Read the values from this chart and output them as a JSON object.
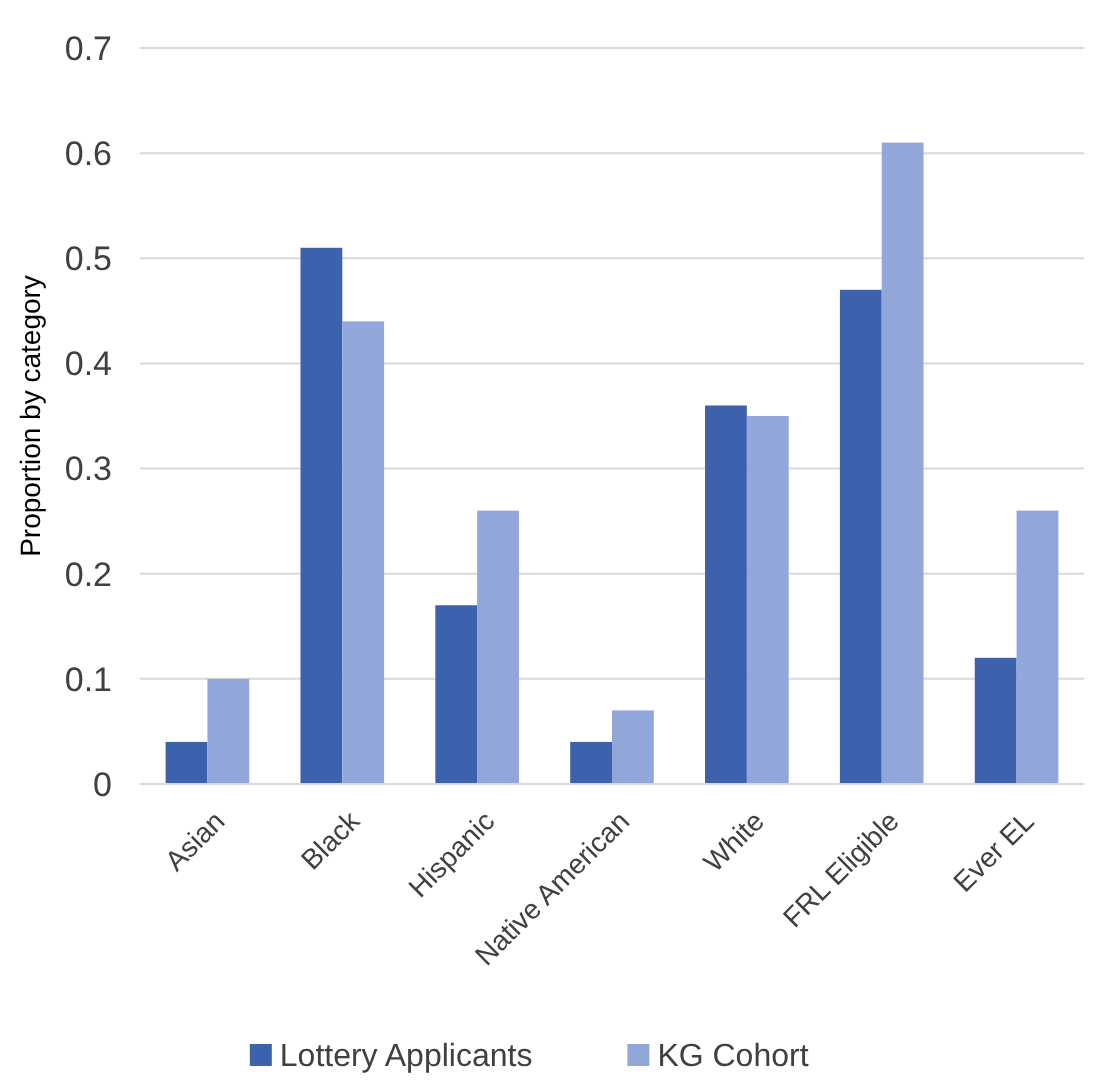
{
  "chart_data": {
    "type": "bar",
    "ylabel": "Proportion by category",
    "categories": [
      "Asian",
      "Black",
      "Hispanic",
      "Native American",
      "White",
      "FRL Eligible",
      "Ever EL"
    ],
    "series": [
      {
        "name": "Lottery Applicants",
        "color": "#3c62ad",
        "values": [
          0.04,
          0.51,
          0.17,
          0.04,
          0.36,
          0.47,
          0.12
        ]
      },
      {
        "name": "KG Cohort",
        "color": "#91a7d9",
        "values": [
          0.1,
          0.44,
          0.26,
          0.07,
          0.35,
          0.61,
          0.26
        ]
      }
    ],
    "ylim": [
      0,
      0.7
    ],
    "yticks": [
      0,
      0.1,
      0.2,
      0.3,
      0.4,
      0.5,
      0.6,
      0.7
    ],
    "grid": "y",
    "legend": "bottom"
  }
}
